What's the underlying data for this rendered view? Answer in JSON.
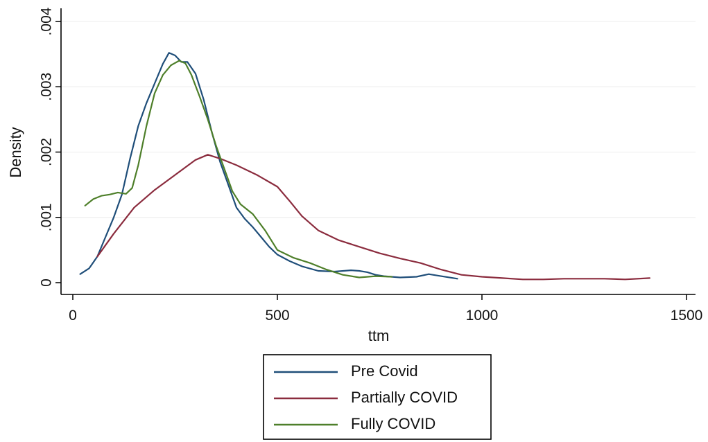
{
  "chart_data": {
    "type": "line",
    "title": "",
    "xlabel": "ttm",
    "ylabel": "Density",
    "xlim": [
      0,
      1500
    ],
    "ylim": [
      0,
      0.004
    ],
    "grid": true,
    "x_ticks": [
      0,
      500,
      1000,
      1500
    ],
    "x_tick_labels": [
      "0",
      "500",
      "1000",
      "1500"
    ],
    "y_ticks": [
      0,
      0.001,
      0.002,
      0.003,
      0.004
    ],
    "y_tick_labels": [
      "0",
      ".001",
      ".002",
      ".003",
      ".004"
    ],
    "legend_position": "bottom",
    "series": [
      {
        "name": "Pre Covid",
        "color": "#1f4e79",
        "x": [
          18,
          40,
          60,
          80,
          100,
          120,
          140,
          160,
          180,
          200,
          220,
          235,
          250,
          265,
          280,
          300,
          320,
          340,
          360,
          380,
          400,
          420,
          440,
          460,
          480,
          500,
          530,
          560,
          600,
          640,
          680,
          700,
          720,
          740,
          760,
          800,
          840,
          870,
          900,
          940
        ],
        "y": [
          0.00013,
          0.00022,
          0.0004,
          0.0007,
          0.001,
          0.00135,
          0.0019,
          0.0024,
          0.00275,
          0.00305,
          0.00335,
          0.00352,
          0.00348,
          0.00338,
          0.00338,
          0.0032,
          0.0028,
          0.0023,
          0.00185,
          0.0015,
          0.00115,
          0.00098,
          0.00085,
          0.0007,
          0.00055,
          0.00043,
          0.00033,
          0.00025,
          0.00018,
          0.00017,
          0.00019,
          0.00018,
          0.00016,
          0.00012,
          0.0001,
          8e-05,
          9e-05,
          0.00013,
          0.0001,
          6e-05
        ]
      },
      {
        "name": "Partially COVID",
        "color": "#8b2c3e",
        "x": [
          60,
          100,
          150,
          200,
          250,
          300,
          330,
          360,
          400,
          450,
          500,
          530,
          560,
          600,
          650,
          700,
          750,
          800,
          850,
          900,
          950,
          1000,
          1050,
          1100,
          1150,
          1200,
          1250,
          1300,
          1350,
          1410
        ],
        "y": [
          0.0004,
          0.00075,
          0.00115,
          0.00142,
          0.00165,
          0.00188,
          0.00196,
          0.0019,
          0.0018,
          0.00165,
          0.00147,
          0.00125,
          0.00102,
          0.0008,
          0.00065,
          0.00055,
          0.00045,
          0.00037,
          0.0003,
          0.0002,
          0.00012,
          9e-05,
          7e-05,
          5e-05,
          5e-05,
          6e-05,
          6e-05,
          6e-05,
          5e-05,
          7e-05
        ]
      },
      {
        "name": "Fully COVID",
        "color": "#4e7f2a",
        "x": [
          30,
          50,
          70,
          90,
          110,
          130,
          145,
          160,
          180,
          200,
          220,
          240,
          260,
          275,
          290,
          310,
          330,
          350,
          370,
          390,
          410,
          440,
          470,
          500,
          540,
          580,
          620,
          660,
          700,
          740,
          780
        ],
        "y": [
          0.00118,
          0.00128,
          0.00133,
          0.00135,
          0.00138,
          0.00136,
          0.00145,
          0.0018,
          0.0024,
          0.0029,
          0.00318,
          0.00333,
          0.0034,
          0.00336,
          0.00318,
          0.00285,
          0.0025,
          0.0021,
          0.00175,
          0.0014,
          0.0012,
          0.00105,
          0.0008,
          0.0005,
          0.00038,
          0.0003,
          0.0002,
          0.00012,
          8e-05,
          0.0001,
          9e-05
        ]
      }
    ]
  }
}
